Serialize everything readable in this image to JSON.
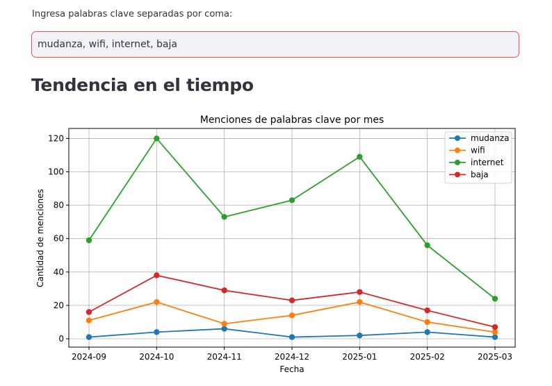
{
  "input": {
    "label": "Ingresa palabras clave separadas por coma:",
    "value": "mudanza, wifi, internet, baja"
  },
  "section": {
    "title": "Tendencia en el tiempo"
  },
  "chart_data": {
    "type": "line",
    "title": "Menciones de palabras clave por mes",
    "xlabel": "Fecha",
    "ylabel": "Cantidad de menciones",
    "categories": [
      "2024-09",
      "2024-10",
      "2024-11",
      "2024-12",
      "2025-01",
      "2025-02",
      "2025-03"
    ],
    "ylim": [
      -5,
      126
    ],
    "yticks": [
      0,
      20,
      40,
      60,
      80,
      100,
      120
    ],
    "grid": true,
    "legend_position": "top-right",
    "series": [
      {
        "name": "mudanza",
        "color": "#1f77b4",
        "values": [
          1,
          4,
          6,
          1,
          2,
          4,
          1
        ]
      },
      {
        "name": "wifi",
        "color": "#ff7f0e",
        "values": [
          11,
          22,
          9,
          14,
          22,
          10,
          4
        ]
      },
      {
        "name": "internet",
        "color": "#2ca02c",
        "values": [
          59,
          120,
          73,
          83,
          109,
          56,
          24
        ]
      },
      {
        "name": "baja",
        "color": "#d62728",
        "values": [
          16,
          38,
          29,
          23,
          28,
          17,
          7
        ]
      }
    ]
  }
}
